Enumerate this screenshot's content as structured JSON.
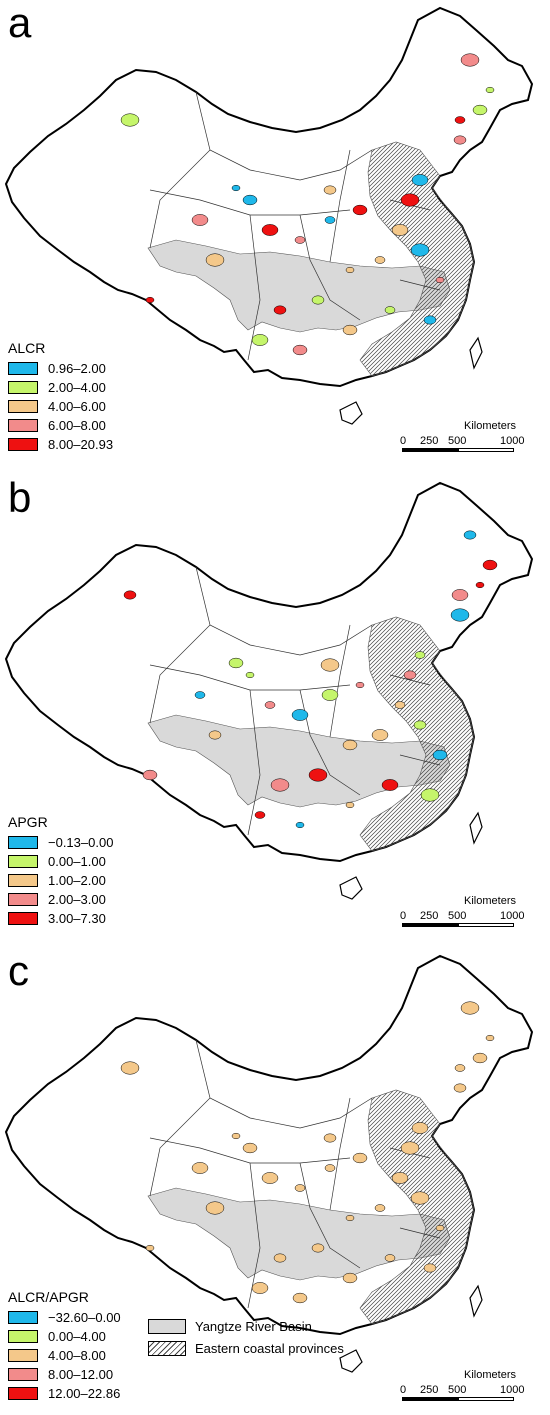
{
  "panels": [
    {
      "letter": "a",
      "legend_title": "ALCR",
      "classes": [
        {
          "label": "0.96–2.00",
          "color": "#1fb8ea"
        },
        {
          "label": "2.00–4.00",
          "color": "#c5f56b"
        },
        {
          "label": "4.00–6.00",
          "color": "#f4c88a"
        },
        {
          "label": "6.00–8.00",
          "color": "#f28b8b"
        },
        {
          "label": "8.00–20.93",
          "color": "#ee1111"
        }
      ]
    },
    {
      "letter": "b",
      "legend_title": "APGR",
      "classes": [
        {
          "label": "−0.13–0.00",
          "color": "#1fb8ea"
        },
        {
          "label": "0.00–1.00",
          "color": "#c5f56b"
        },
        {
          "label": "1.00–2.00",
          "color": "#f4c88a"
        },
        {
          "label": "2.00–3.00",
          "color": "#f28b8b"
        },
        {
          "label": "3.00–7.30",
          "color": "#ee1111"
        }
      ]
    },
    {
      "letter": "c",
      "legend_title": "ALCR/APGR",
      "classes": [
        {
          "label": "−32.60–0.00",
          "color": "#1fb8ea"
        },
        {
          "label": "0.00–4.00",
          "color": "#c5f56b"
        },
        {
          "label": "4.00–8.00",
          "color": "#f4c88a"
        },
        {
          "label": "8.00–12.00",
          "color": "#f28b8b"
        },
        {
          "label": "12.00–22.86",
          "color": "#ee1111"
        }
      ]
    }
  ],
  "scalebar": {
    "unit": "Kilometers",
    "ticks": [
      "0",
      "250",
      "500",
      "1000"
    ]
  },
  "region_legend": [
    {
      "label": "Yangtze River Basin",
      "color": "#d9d9d9"
    },
    {
      "label": "Eastern coastal provinces",
      "pattern": "hatch"
    }
  ]
}
